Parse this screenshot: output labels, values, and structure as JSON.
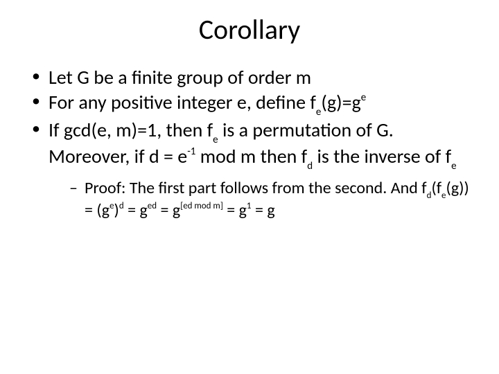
{
  "title": "Corollary",
  "bullets": {
    "b1": "Let G be a finite group of order m",
    "b2_pre": "For any positive integer e, define f",
    "b2_sub1": "e",
    "b2_mid": "(g)=g",
    "b2_sup1": "e",
    "b3_pre": "If gcd(e, m)=1, then f",
    "b3_sub1": "e",
    "b3_mid1": " is a permutation of G. Moreover, if d = e",
    "b3_sup1": "-1",
    "b3_mid2": " mod m then f",
    "b3_sub2": "d",
    "b3_mid3": " is the inverse of f",
    "b3_sub3": "e"
  },
  "proof": {
    "pre": "Proof: The first part follows from the second. And f",
    "sub1": "d",
    "t1": "(f",
    "sub2": "e",
    "t2": "(g)) = (g",
    "sup1": "e",
    "t3": ")",
    "sup2": "d",
    "t4": " = g",
    "sup3": "ed",
    "t5": " = g",
    "sup4": "[ed mod m]",
    "t6": " = g",
    "sup5": "1",
    "t7": " = g"
  },
  "style": {
    "background": "#ffffff",
    "text_color": "#000000",
    "title_fontsize": 40,
    "body_fontsize": 28,
    "sub_fontsize": 24
  }
}
